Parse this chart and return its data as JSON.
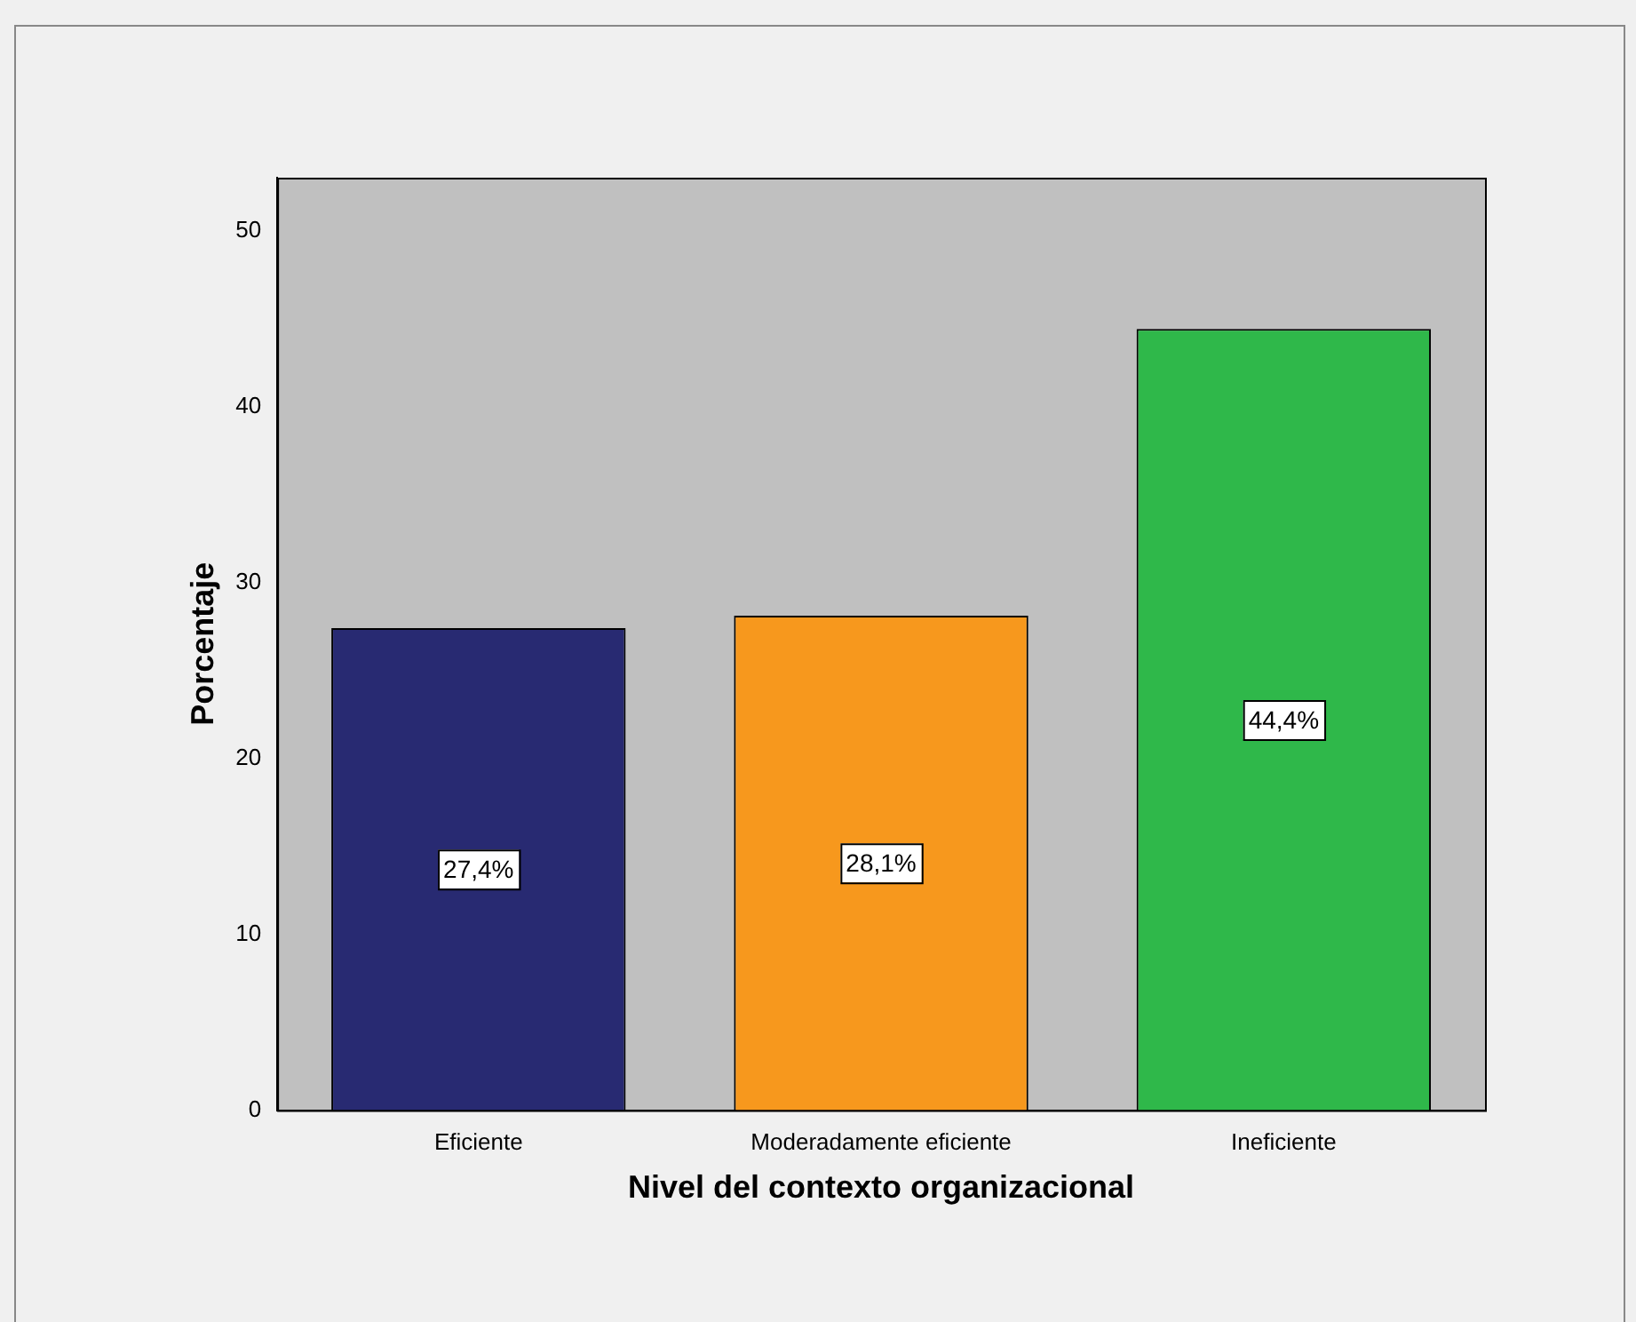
{
  "chart_data": {
    "type": "bar",
    "xlabel": "Nivel del contexto organizacional",
    "ylabel": "Porcentaje",
    "categories": [
      "Eficiente",
      "Moderadamente eficiente",
      "Ineficiente"
    ],
    "values": [
      27.4,
      28.1,
      44.4
    ],
    "colors": [
      "#282a72",
      "#f7981d",
      "#2fb84a"
    ],
    "value_labels": [
      "27,4%",
      "28,1%",
      "44,4%"
    ],
    "ylim": [
      0,
      53
    ],
    "yticks": [
      0,
      10,
      20,
      30,
      40,
      50
    ],
    "grid": false,
    "legend": false
  }
}
